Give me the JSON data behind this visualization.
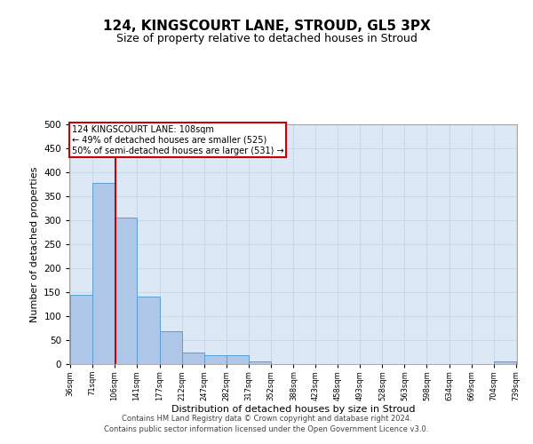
{
  "title": "124, KINGSCOURT LANE, STROUD, GL5 3PX",
  "subtitle": "Size of property relative to detached houses in Stroud",
  "xlabel": "Distribution of detached houses by size in Stroud",
  "ylabel": "Number of detached properties",
  "footer_line1": "Contains HM Land Registry data © Crown copyright and database right 2024.",
  "footer_line2": "Contains public sector information licensed under the Open Government Licence v3.0.",
  "annotation_line1": "124 KINGSCOURT LANE: 108sqm",
  "annotation_line2": "← 49% of detached houses are smaller (525)",
  "annotation_line3": "50% of semi-detached houses are larger (531) →",
  "bar_left_edges": [
    36,
    71,
    106,
    141,
    177,
    212,
    247,
    282,
    317,
    352,
    388,
    423,
    458,
    493,
    528,
    563,
    598,
    634,
    669,
    704
  ],
  "bar_widths": [
    35,
    35,
    35,
    36,
    35,
    35,
    35,
    35,
    35,
    36,
    35,
    35,
    35,
    35,
    35,
    35,
    36,
    35,
    35,
    35
  ],
  "bar_heights": [
    145,
    378,
    305,
    140,
    68,
    25,
    18,
    18,
    5,
    0,
    0,
    0,
    0,
    0,
    0,
    0,
    0,
    0,
    0,
    5
  ],
  "bar_color": "#aec6e8",
  "bar_edgecolor": "#5a9fd4",
  "grid_color": "#c8d8e8",
  "bg_color": "#dce8f5",
  "vline_x": 108,
  "vline_color": "#cc0000",
  "ylim": [
    0,
    500
  ],
  "yticks": [
    0,
    50,
    100,
    150,
    200,
    250,
    300,
    350,
    400,
    450,
    500
  ],
  "xtick_labels": [
    "36sqm",
    "71sqm",
    "106sqm",
    "141sqm",
    "177sqm",
    "212sqm",
    "247sqm",
    "282sqm",
    "317sqm",
    "352sqm",
    "388sqm",
    "423sqm",
    "458sqm",
    "493sqm",
    "528sqm",
    "563sqm",
    "598sqm",
    "634sqm",
    "669sqm",
    "704sqm",
    "739sqm"
  ],
  "title_fontsize": 11,
  "subtitle_fontsize": 9,
  "ylabel_fontsize": 8,
  "xlabel_fontsize": 8,
  "annotation_fontsize": 7,
  "footer_fontsize": 6
}
